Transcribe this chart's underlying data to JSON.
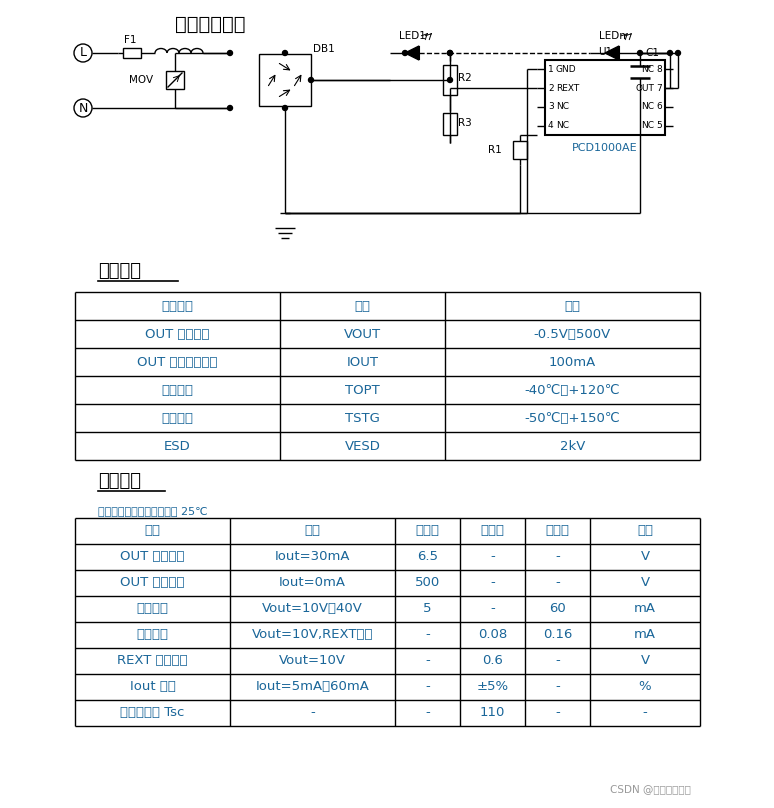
{
  "title_circuit": "典型应用方案",
  "title_limit": "极限参数",
  "title_elec": "电气参数",
  "subtitle_elec": "若无特殊说明，环境温度为 25℃",
  "blue": "#1a6699",
  "black": "#000000",
  "bg": "#ffffff",
  "limit_headers": [
    "特性参数",
    "符号",
    "范围"
  ],
  "limit_rows": [
    [
      "OUT 端口电压",
      "VOUT",
      "-0.5V～500V"
    ],
    [
      "OUT 端口饱和电流",
      "IOUT",
      "100mA"
    ],
    [
      "工作温度",
      "TOPT",
      "-40℃～+120℃"
    ],
    [
      "贮存温度",
      "TSTG",
      "-50℃～+150℃"
    ],
    [
      "ESD",
      "VESD",
      "2kV"
    ]
  ],
  "elec_headers": [
    "参数",
    "条件",
    "最小值",
    "典型值",
    "最大值",
    "单位"
  ],
  "elec_rows": [
    [
      "OUT 输入电压",
      "Iout=30mA",
      "6.5",
      "-",
      "-",
      "V"
    ],
    [
      "OUT 端口耐压",
      "Iout=0mA",
      "500",
      "-",
      "-",
      "V"
    ],
    [
      "输出电流",
      "Vout=10V～40V",
      "5",
      "-",
      "60",
      "mA"
    ],
    [
      "静态电流",
      "Vout=10V,REXT悬空",
      "-",
      "0.08",
      "0.16",
      "mA"
    ],
    [
      "REXT 端口电压",
      "Vout=10V",
      "-",
      "0.6",
      "-",
      "V"
    ],
    [
      "Iout 误差",
      "Iout=5mA～60mA",
      "-",
      "±5%",
      "-",
      "%"
    ],
    [
      "温度补偿点 Tsc",
      "-",
      "-",
      "110",
      "-",
      "-"
    ]
  ],
  "watermark": "CSDN @集芯微电科技"
}
